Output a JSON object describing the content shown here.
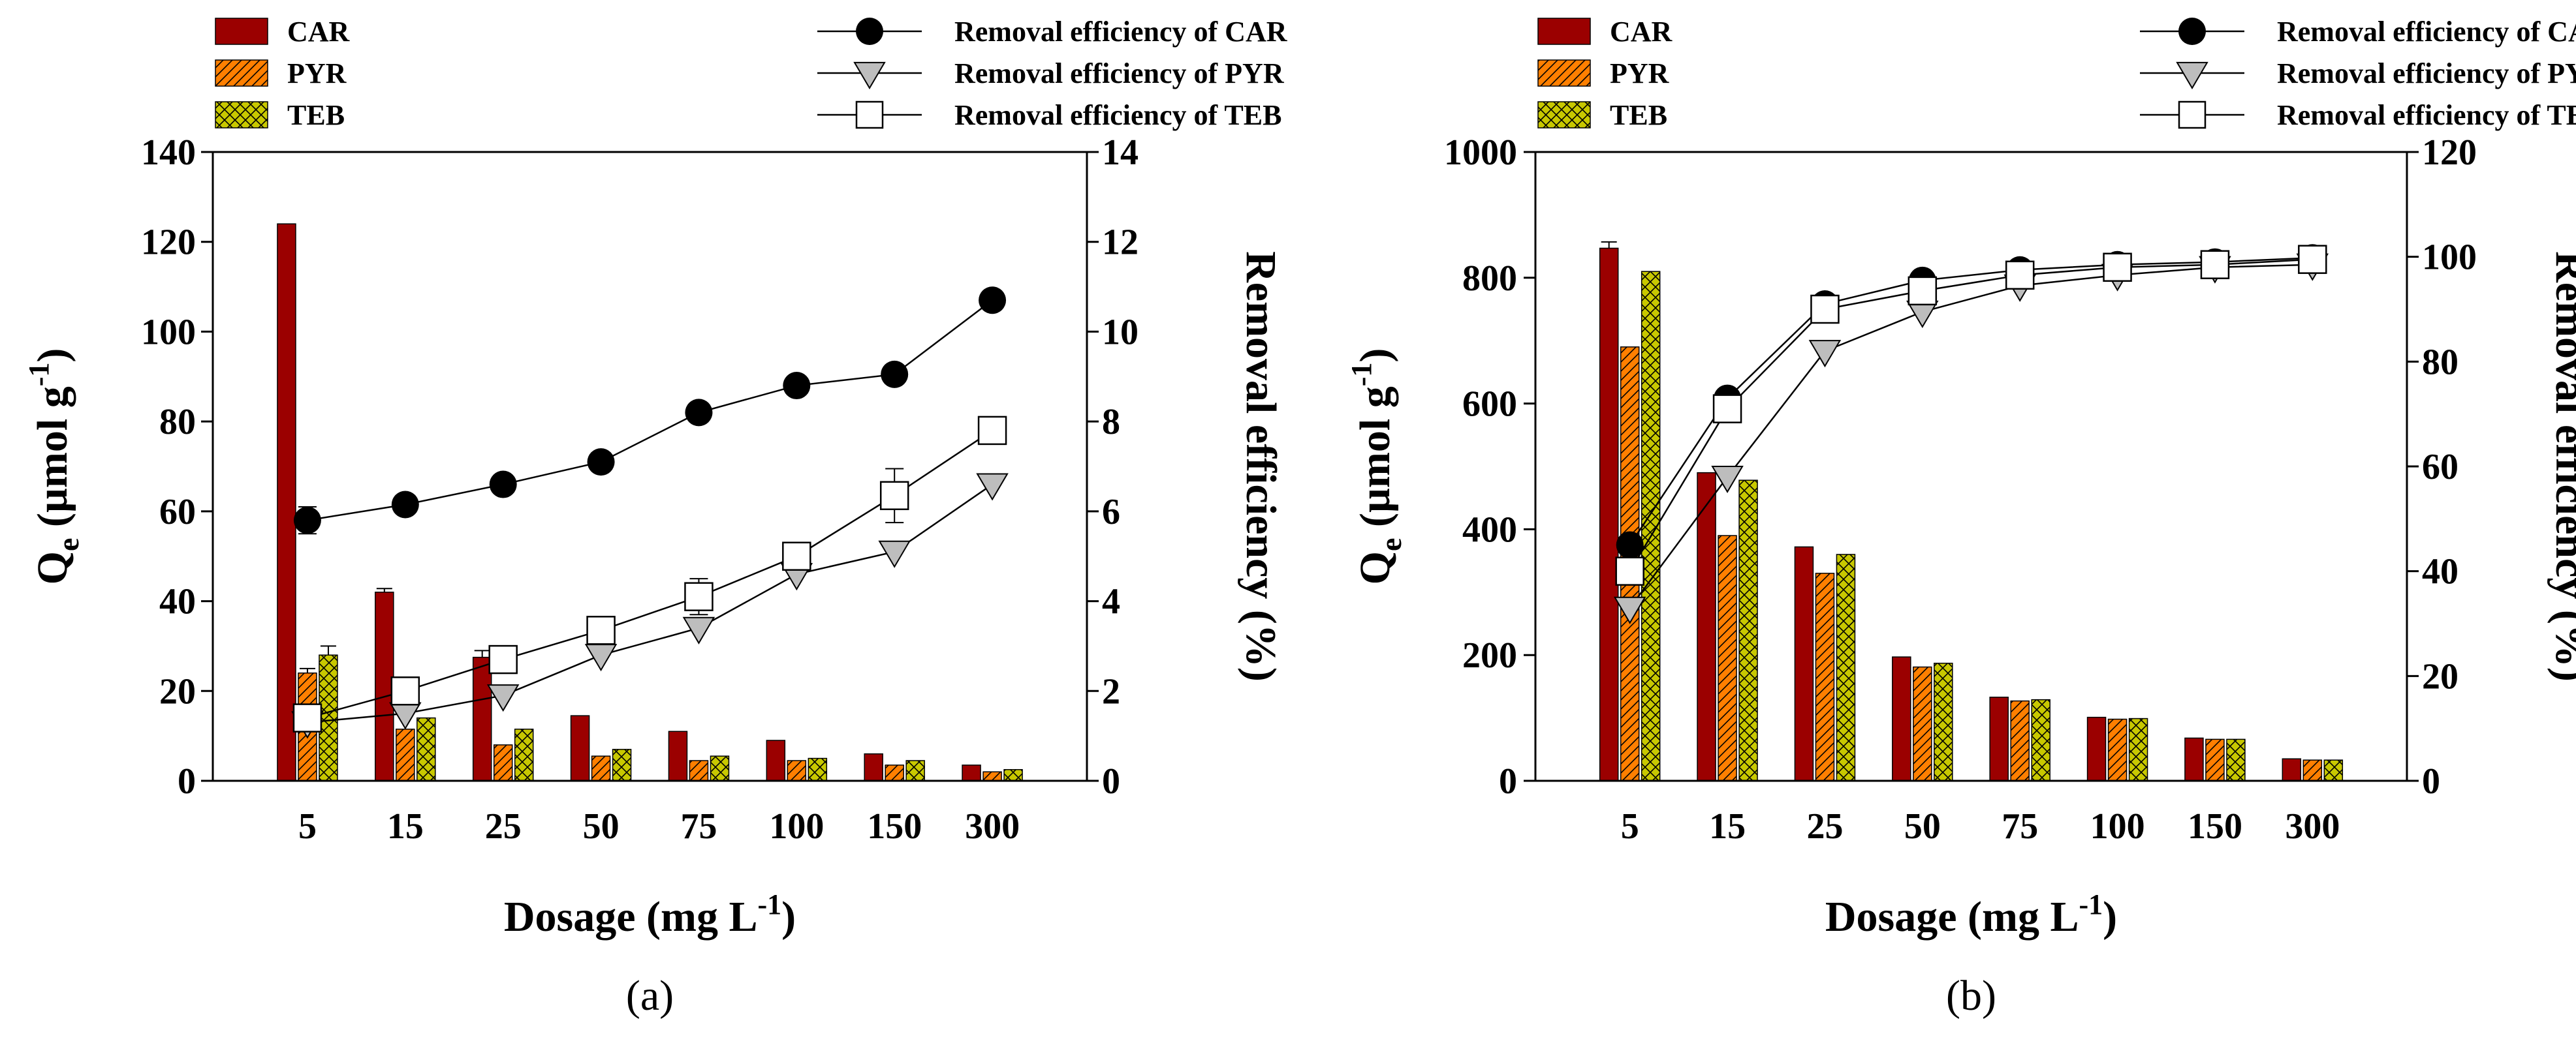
{
  "chart_data": [
    {
      "type": "bar",
      "panel_label": "(a)",
      "categories": [
        "5",
        "15",
        "25",
        "50",
        "75",
        "100",
        "150",
        "300"
      ],
      "xlabel": {
        "main": "Dosage (mg L",
        "sup": "-1",
        "close": ")"
      },
      "ylabel": {
        "main": "Q",
        "sub": "e",
        "rest": " (µmol g",
        "sup": "-1",
        "close": ")"
      },
      "ylabel_right": "Removal efficiency (%)",
      "ylim": [
        0,
        140
      ],
      "yticks": [
        0,
        20,
        40,
        60,
        80,
        100,
        120,
        140
      ],
      "ylim_right": [
        0,
        14
      ],
      "yticks_right": [
        0,
        2,
        4,
        6,
        8,
        10,
        12,
        14
      ],
      "bar_series": [
        {
          "name": "CAR",
          "color": "#9B0000",
          "pattern": "solid",
          "values": [
            124,
            42,
            27.5,
            14.5,
            11,
            9,
            6,
            3.5
          ],
          "errors": [
            0,
            0.8,
            1.5,
            0,
            0,
            0,
            0,
            0
          ]
        },
        {
          "name": "PYR",
          "color": "#FF7F00",
          "pattern": "hatch",
          "values": [
            24,
            11.5,
            8,
            5.5,
            4.5,
            4.5,
            3.5,
            2
          ],
          "errors": [
            1,
            0,
            0,
            0,
            0,
            0,
            0,
            0
          ]
        },
        {
          "name": "TEB",
          "color": "#C8C800",
          "pattern": "crosshatch",
          "values": [
            28,
            14,
            11.5,
            7,
            5.5,
            5,
            4.5,
            2.5
          ],
          "errors": [
            2,
            0,
            0,
            0,
            0,
            0,
            0,
            0
          ]
        }
      ],
      "line_series": [
        {
          "name": "Removal efficiency of CAR",
          "marker": "circle",
          "values": [
            5.8,
            6.15,
            6.6,
            7.1,
            8.2,
            8.8,
            9.05,
            10.7
          ],
          "errors": [
            0.3,
            0,
            0,
            0,
            0,
            0,
            0,
            0
          ]
        },
        {
          "name": "Removal efficiency of PYR",
          "marker": "triangle-down",
          "values": [
            1.3,
            1.5,
            1.9,
            2.8,
            3.4,
            4.6,
            5.1,
            6.6
          ],
          "errors": [
            0,
            0,
            0,
            0,
            0,
            0,
            0,
            0
          ]
        },
        {
          "name": "Removal efficiency of TEB",
          "marker": "square",
          "values": [
            1.4,
            2.0,
            2.7,
            3.35,
            4.1,
            5.0,
            6.35,
            7.8
          ],
          "errors": [
            0,
            0,
            0,
            0,
            0.4,
            0,
            0.6,
            0
          ]
        }
      ]
    },
    {
      "type": "bar",
      "panel_label": "(b)",
      "categories": [
        "5",
        "15",
        "25",
        "50",
        "75",
        "100",
        "150",
        "300"
      ],
      "xlabel": {
        "main": "Dosage (mg L",
        "sup": "-1",
        "close": ")"
      },
      "ylabel": {
        "main": "Q",
        "sub": "e",
        "rest": " (µmol g",
        "sup": "-1",
        "close": ")"
      },
      "ylabel_right": "Removal efficiency (%)",
      "ylim": [
        0,
        1000
      ],
      "yticks": [
        0,
        200,
        400,
        600,
        800,
        1000
      ],
      "ylim_right": [
        0,
        120
      ],
      "yticks_right": [
        0,
        20,
        40,
        60,
        80,
        100,
        120
      ],
      "bar_series": [
        {
          "name": "CAR",
          "color": "#9B0000",
          "pattern": "solid",
          "values": [
            847,
            490,
            372,
            197,
            133,
            101,
            68,
            35
          ],
          "errors": [
            10,
            0,
            0,
            0,
            0,
            0,
            0,
            0
          ]
        },
        {
          "name": "PYR",
          "color": "#FF7F00",
          "pattern": "hatch",
          "values": [
            690,
            390,
            330,
            181,
            127,
            98,
            66,
            33
          ],
          "errors": [
            0,
            0,
            0,
            0,
            0,
            0,
            0,
            0
          ]
        },
        {
          "name": "TEB",
          "color": "#C8C800",
          "pattern": "crosshatch",
          "values": [
            810,
            478,
            360,
            187,
            129,
            99,
            66,
            33
          ],
          "errors": [
            0,
            0,
            0,
            0,
            0,
            0,
            0,
            0
          ]
        }
      ],
      "line_series": [
        {
          "name": "Removal efficiency of CAR",
          "marker": "circle",
          "values": [
            45,
            73,
            91,
            95.5,
            97.5,
            98.5,
            99,
            99.8
          ],
          "errors": [
            0,
            0,
            0,
            0,
            0,
            0,
            0,
            0
          ]
        },
        {
          "name": "Removal efficiency of PYR",
          "marker": "triangle-down",
          "values": [
            33,
            58,
            82,
            89.5,
            94.5,
            96.5,
            98,
            98.5
          ],
          "errors": [
            0,
            0,
            0,
            0,
            0,
            0,
            0,
            0
          ]
        },
        {
          "name": "Removal efficiency of TEB",
          "marker": "square",
          "values": [
            40,
            71,
            90,
            93.5,
            96.5,
            98,
            98.5,
            99.5
          ],
          "errors": [
            0,
            0,
            0,
            0,
            0,
            0,
            0,
            0
          ]
        }
      ]
    }
  ]
}
